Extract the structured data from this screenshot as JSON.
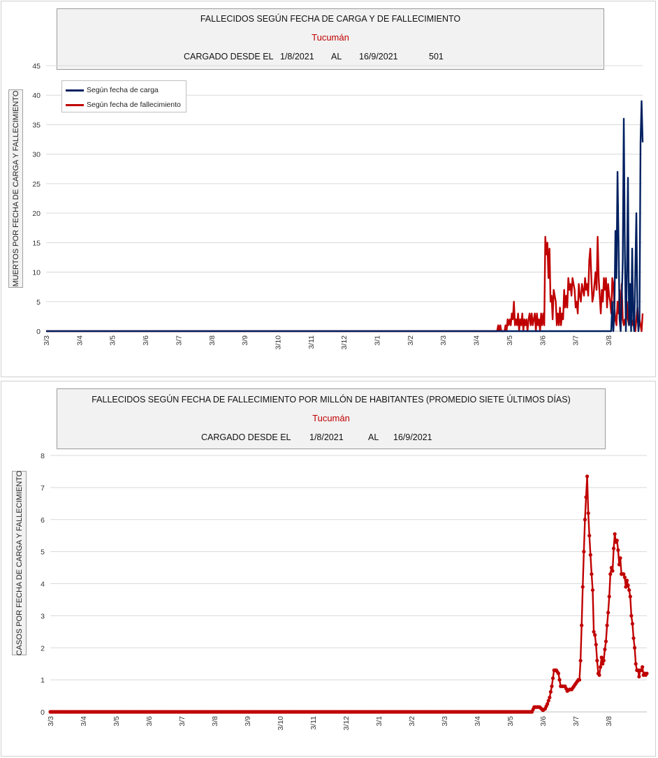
{
  "chart1": {
    "title": "FALLECIDOS SEGÚN FECHA DE CARGA Y DE FALLECIMIENTO",
    "subtitle": "Tucumán",
    "range_label": "CARGADO DESDE EL",
    "date_from": "1/8/2021",
    "range_sep": "AL",
    "date_to": "16/9/2021",
    "total": "501",
    "ylabel": "MUERTOS  POR FECHA DE CARGA  Y FALLECIMIENTO",
    "legend": [
      "Según fecha de carga",
      "Según fecha de fallecimiento"
    ]
  },
  "chart2": {
    "title": "FALLECIDOS SEGÚN FECHA DE FALLECIMIENTO POR MILLÓN DE HABITANTES (PROMEDIO SIETE ÚLTIMOS DÍAS)",
    "subtitle": "Tucumán",
    "range_label": "CARGADO DESDE EL",
    "date_from": "1/8/2021",
    "range_sep": "AL",
    "date_to": "16/9/2021",
    "ylabel": "CASOS POR FECHA DE CARGA  Y FALLECIMIENTO"
  },
  "colors": {
    "carga": "#002060",
    "fallecimiento": "#c00000",
    "grid": "#d9d9d9"
  },
  "chart_data": [
    {
      "type": "line",
      "title": "FALLECIDOS SEGÚN FECHA DE CARGA Y DE FALLECIMIENTO",
      "subtitle": "Tucumán",
      "ylabel": "MUERTOS  POR FECHA DE CARGA  Y FALLECIMIENTO",
      "ylim": [
        0,
        45
      ],
      "yticks": [
        0,
        5,
        10,
        15,
        20,
        25,
        30,
        35,
        40,
        45
      ],
      "x_start": "3/3",
      "x_end": "16/9",
      "xticks": [
        "3/3",
        "3/4",
        "3/5",
        "3/6",
        "3/7",
        "3/8",
        "3/9",
        "3/10",
        "3/11",
        "3/12",
        "3/1",
        "3/2",
        "3/3",
        "3/4",
        "3/5",
        "3/6",
        "3/7",
        "3/8"
      ],
      "grid": true,
      "legend_position": "top-left",
      "series": [
        {
          "name": "Según fecha de carga",
          "points": [
            [
              0,
              0
            ],
            [
              540,
              0
            ],
            [
              541,
              5
            ],
            [
              542,
              0
            ],
            [
              543,
              3
            ],
            [
              544,
              17
            ],
            [
              545,
              9
            ],
            [
              546,
              27
            ],
            [
              547,
              15
            ],
            [
              548,
              2
            ],
            [
              549,
              0
            ],
            [
              550,
              5
            ],
            [
              551,
              12
            ],
            [
              552,
              36
            ],
            [
              553,
              14
            ],
            [
              554,
              0
            ],
            [
              555,
              10
            ],
            [
              556,
              26
            ],
            [
              557,
              1
            ],
            [
              558,
              8
            ],
            [
              559,
              0
            ],
            [
              560,
              14
            ],
            [
              561,
              2
            ],
            [
              562,
              0
            ],
            [
              563,
              10
            ],
            [
              564,
              20
            ],
            [
              565,
              3
            ],
            [
              566,
              0
            ],
            [
              567,
              2
            ],
            [
              568,
              32
            ],
            [
              569,
              39
            ],
            [
              570,
              32
            ]
          ]
        },
        {
          "name": "Según fecha de fallecimiento",
          "points": [
            [
              0,
              0
            ],
            [
              431,
              0
            ],
            [
              432,
              1
            ],
            [
              433,
              0
            ],
            [
              434,
              1
            ],
            [
              435,
              0
            ],
            [
              438,
              0
            ],
            [
              439,
              1
            ],
            [
              440,
              0
            ],
            [
              441,
              2
            ],
            [
              442,
              1
            ],
            [
              443,
              2
            ],
            [
              444,
              1
            ],
            [
              445,
              3
            ],
            [
              446,
              2
            ],
            [
              447,
              5
            ],
            [
              448,
              1
            ],
            [
              449,
              2
            ],
            [
              450,
              1
            ],
            [
              451,
              3
            ],
            [
              452,
              0
            ],
            [
              453,
              2
            ],
            [
              454,
              1
            ],
            [
              455,
              3
            ],
            [
              456,
              0
            ],
            [
              457,
              2
            ],
            [
              458,
              1
            ],
            [
              459,
              2
            ],
            [
              460,
              0
            ],
            [
              461,
              2
            ],
            [
              462,
              3
            ],
            [
              463,
              1
            ],
            [
              464,
              3
            ],
            [
              465,
              1
            ],
            [
              466,
              2
            ],
            [
              467,
              3
            ],
            [
              468,
              0
            ],
            [
              469,
              3
            ],
            [
              470,
              1
            ],
            [
              471,
              2
            ],
            [
              472,
              0
            ],
            [
              473,
              3
            ],
            [
              474,
              1
            ],
            [
              475,
              3
            ],
            [
              476,
              1
            ],
            [
              477,
              16
            ],
            [
              478,
              13
            ],
            [
              479,
              15
            ],
            [
              480,
              9
            ],
            [
              481,
              14
            ],
            [
              482,
              5
            ],
            [
              483,
              6
            ],
            [
              484,
              2
            ],
            [
              485,
              7
            ],
            [
              486,
              6
            ],
            [
              487,
              5
            ],
            [
              488,
              1
            ],
            [
              489,
              3
            ],
            [
              490,
              1
            ],
            [
              491,
              4
            ],
            [
              492,
              1
            ],
            [
              493,
              3
            ],
            [
              494,
              2
            ],
            [
              495,
              7
            ],
            [
              496,
              4
            ],
            [
              497,
              6
            ],
            [
              498,
              4
            ],
            [
              499,
              9
            ],
            [
              500,
              7
            ],
            [
              501,
              8
            ],
            [
              502,
              6
            ],
            [
              503,
              9
            ],
            [
              504,
              8
            ],
            [
              505,
              7
            ],
            [
              506,
              4
            ],
            [
              507,
              5
            ],
            [
              508,
              3
            ],
            [
              509,
              8
            ],
            [
              510,
              6
            ],
            [
              511,
              5
            ],
            [
              512,
              8
            ],
            [
              513,
              7
            ],
            [
              514,
              6
            ],
            [
              515,
              9
            ],
            [
              516,
              7
            ],
            [
              517,
              8
            ],
            [
              518,
              6
            ],
            [
              519,
              12
            ],
            [
              520,
              14
            ],
            [
              521,
              9
            ],
            [
              522,
              5
            ],
            [
              523,
              6
            ],
            [
              524,
              8
            ],
            [
              525,
              10
            ],
            [
              526,
              7
            ],
            [
              527,
              16
            ],
            [
              528,
              9
            ],
            [
              529,
              6
            ],
            [
              530,
              3
            ],
            [
              531,
              7
            ],
            [
              532,
              5
            ],
            [
              533,
              9
            ],
            [
              534,
              7
            ],
            [
              535,
              9
            ],
            [
              536,
              4
            ],
            [
              537,
              8
            ],
            [
              538,
              6
            ],
            [
              539,
              5
            ],
            [
              540,
              3
            ],
            [
              541,
              9
            ],
            [
              542,
              8
            ],
            [
              543,
              4
            ],
            [
              544,
              2
            ],
            [
              545,
              1
            ],
            [
              546,
              5
            ],
            [
              547,
              3
            ],
            [
              548,
              7
            ],
            [
              549,
              1
            ],
            [
              550,
              8
            ],
            [
              551,
              2
            ],
            [
              552,
              1
            ],
            [
              553,
              2
            ],
            [
              554,
              1
            ],
            [
              555,
              5
            ],
            [
              556,
              2
            ],
            [
              557,
              1
            ],
            [
              558,
              3
            ],
            [
              559,
              2
            ],
            [
              560,
              1
            ],
            [
              561,
              2
            ],
            [
              562,
              1
            ],
            [
              563,
              0
            ],
            [
              564,
              2
            ],
            [
              565,
              4
            ],
            [
              566,
              1
            ],
            [
              567,
              2
            ],
            [
              568,
              1
            ],
            [
              569,
              0
            ],
            [
              570,
              3
            ]
          ]
        }
      ]
    },
    {
      "type": "line",
      "title": "FALLECIDOS SEGÚN FECHA DE FALLECIMIENTO POR MILLÓN DE HABITANTES (PROMEDIO SIETE ÚLTIMOS DÍAS)",
      "subtitle": "Tucumán",
      "ylabel": "CASOS POR FECHA DE CARGA  Y FALLECIMIENTO",
      "ylim": [
        0,
        8
      ],
      "yticks": [
        0,
        1,
        2,
        3,
        4,
        5,
        6,
        7,
        8
      ],
      "x_start": "3/3",
      "x_end": "16/9",
      "xticks": [
        "3/3",
        "3/4",
        "3/5",
        "3/6",
        "3/7",
        "3/8",
        "3/9",
        "3/10",
        "3/11",
        "3/12",
        "3/1",
        "3/2",
        "3/3",
        "3/4",
        "3/5",
        "3/6",
        "3/7",
        "3/8"
      ],
      "grid": true,
      "markers": true,
      "series": [
        {
          "name": "",
          "points": [
            [
              0,
              0
            ],
            [
              436,
              0
            ],
            [
              438,
              0.15
            ],
            [
              443,
              0.15
            ],
            [
              446,
              0.05
            ],
            [
              448,
              0.1
            ],
            [
              450,
              0.25
            ],
            [
              452,
              0.45
            ],
            [
              454,
              0.8
            ],
            [
              456,
              1.3
            ],
            [
              458,
              1.3
            ],
            [
              460,
              1.2
            ],
            [
              462,
              0.8
            ],
            [
              464,
              0.8
            ],
            [
              466,
              0.8
            ],
            [
              468,
              0.65
            ],
            [
              470,
              0.7
            ],
            [
              472,
              0.7
            ],
            [
              474,
              0.8
            ],
            [
              476,
              0.9
            ],
            [
              478,
              1.0
            ],
            [
              479,
              1.0
            ],
            [
              480,
              1.6
            ],
            [
              481,
              2.7
            ],
            [
              482,
              3.9
            ],
            [
              483,
              5.0
            ],
            [
              484,
              6.0
            ],
            [
              485,
              6.7
            ],
            [
              486,
              7.35
            ],
            [
              487,
              6.2
            ],
            [
              488,
              5.5
            ],
            [
              489,
              4.9
            ],
            [
              490,
              4.3
            ],
            [
              491,
              3.8
            ],
            [
              492,
              2.5
            ],
            [
              493,
              2.4
            ],
            [
              494,
              2.1
            ],
            [
              495,
              1.6
            ],
            [
              496,
              1.2
            ],
            [
              497,
              1.15
            ],
            [
              498,
              1.4
            ],
            [
              499,
              1.7
            ],
            [
              500,
              1.5
            ],
            [
              501,
              1.6
            ],
            [
              502,
              1.95
            ],
            [
              503,
              2.2
            ],
            [
              504,
              2.7
            ],
            [
              505,
              3.1
            ],
            [
              506,
              3.6
            ],
            [
              507,
              4.3
            ],
            [
              508,
              4.5
            ],
            [
              509,
              4.4
            ],
            [
              510,
              5.1
            ],
            [
              511,
              5.55
            ],
            [
              512,
              5.3
            ],
            [
              513,
              5.35
            ],
            [
              514,
              5.05
            ],
            [
              515,
              4.6
            ],
            [
              516,
              4.8
            ],
            [
              517,
              4.3
            ],
            [
              518,
              4.3
            ],
            [
              519,
              4.3
            ],
            [
              520,
              4.2
            ],
            [
              521,
              3.9
            ],
            [
              522,
              4.1
            ],
            [
              523,
              3.95
            ],
            [
              524,
              3.8
            ],
            [
              525,
              3.6
            ],
            [
              526,
              3.0
            ],
            [
              527,
              2.75
            ],
            [
              528,
              2.3
            ],
            [
              529,
              2.0
            ],
            [
              530,
              1.5
            ],
            [
              531,
              1.3
            ],
            [
              532,
              1.3
            ],
            [
              533,
              1.1
            ],
            [
              534,
              1.3
            ],
            [
              535,
              1.3
            ],
            [
              536,
              1.4
            ],
            [
              537,
              1.15
            ],
            [
              538,
              1.2
            ],
            [
              539,
              1.15
            ],
            [
              540,
              1.2
            ]
          ]
        }
      ]
    }
  ]
}
